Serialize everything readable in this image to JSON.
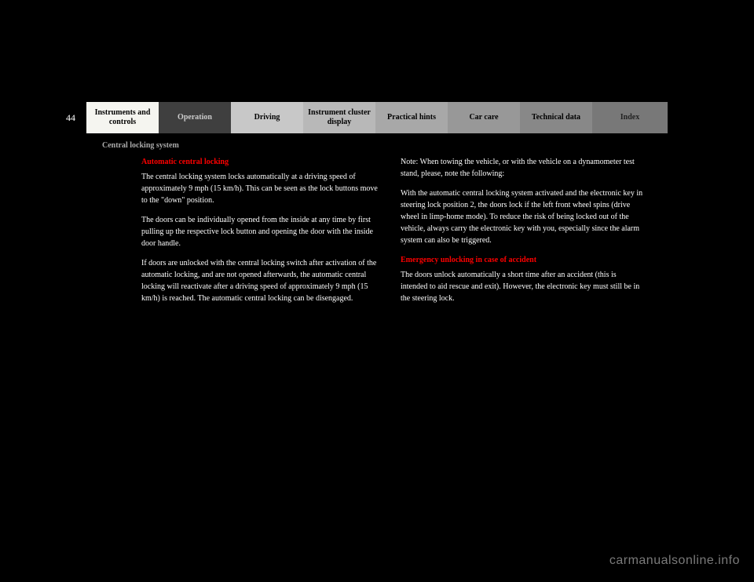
{
  "page_number": "44",
  "tabs": {
    "instruments": "Instruments and controls",
    "operation": "Operation",
    "driving": "Driving",
    "cluster": "Instrument cluster display",
    "hints": "Practical hints",
    "carcare": "Car care",
    "techdata": "Technical data",
    "index": "Index"
  },
  "section_label": "Central locking system",
  "left": {
    "heading": "Automatic central locking",
    "p1": "The central locking system locks automatically at a driving speed of approximately 9 mph (15 km/h). This can be seen as the lock buttons move to the \"down\" position.",
    "p2": "The doors can be individually opened from the inside at any time by first pulling up the respective lock button and opening the door with the inside door handle.",
    "p3": "If doors are unlocked with the central locking switch after activation of the automatic locking, and are not opened afterwards, the automatic central locking will reactivate after a driving speed of approximately 9 mph (15 km/h) is reached. The automatic central locking can be disengaged."
  },
  "right": {
    "note_label": "Note:",
    "p1_rest": " When towing the vehicle, or with the vehicle on a dynamometer test stand, please, note the following:",
    "p2": "With the automatic central locking system activated and the electronic key in steering lock position 2, the doors lock if the left front wheel spins (drive wheel in limp-home mode). To reduce the risk of being locked out of the vehicle, always carry the electronic key with you, especially since the alarm system can also be triggered.",
    "heading2": "Emergency unlocking in case of accident",
    "p3": "The doors unlock automatically a short time after an accident (this is intended to aid rescue and exit). However, the electronic key must still be in the steering lock."
  },
  "watermark": "carmanualsonline.info"
}
